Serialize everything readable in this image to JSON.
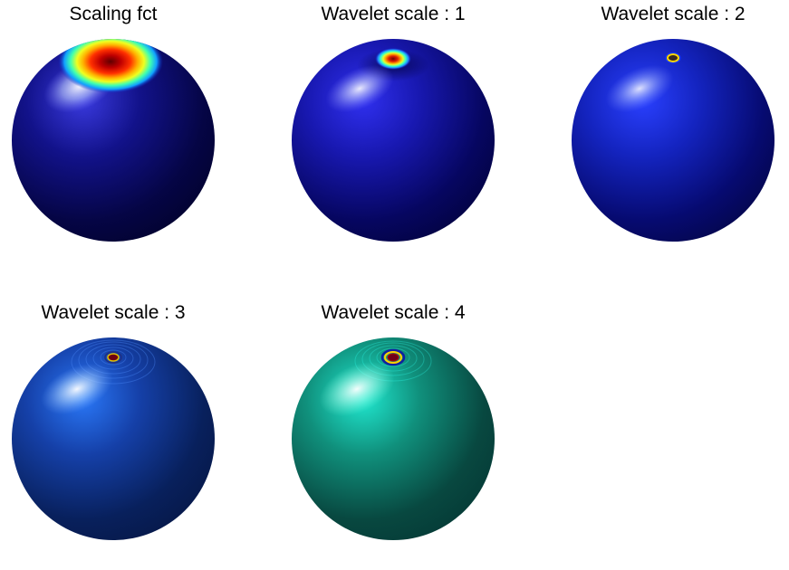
{
  "panels": [
    {
      "id": "scaling",
      "title": "Scaling fct",
      "colors": {
        "base_light": "#2a2ad8",
        "base_mid": "#101080",
        "base_dark": "#02023a",
        "highlight": "#ffffff"
      },
      "spot_style": "scaling"
    },
    {
      "id": "wavelet-1",
      "title": "Wavelet scale : 1",
      "colors": {
        "base_light": "#2d2df0",
        "base_mid": "#1515a8",
        "base_dark": "#040450",
        "highlight": "#ffffff"
      },
      "spot_style": "w1"
    },
    {
      "id": "wavelet-2",
      "title": "Wavelet scale : 2",
      "colors": {
        "base_light": "#2a35f5",
        "base_mid": "#1220b8",
        "base_dark": "#040860",
        "highlight": "#ffffff"
      },
      "spot_style": "w2"
    },
    {
      "id": "wavelet-3",
      "title": "Wavelet scale : 3",
      "colors": {
        "base_light": "#2a6ef0",
        "base_mid": "#13389a",
        "base_dark": "#061a55",
        "highlight": "#ffffff"
      },
      "spot_style": "w3"
    },
    {
      "id": "wavelet-4",
      "title": "Wavelet scale : 4",
      "colors": {
        "base_light": "#1fd8c8",
        "base_mid": "#10806f",
        "base_dark": "#063a38",
        "highlight": "#ffffff"
      },
      "spot_style": "w4"
    }
  ]
}
